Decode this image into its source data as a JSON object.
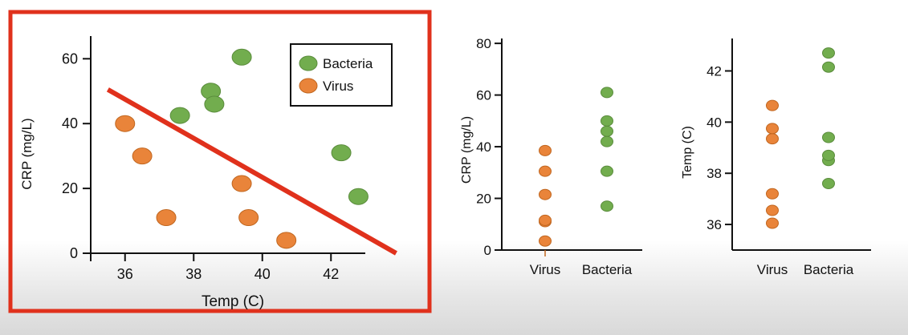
{
  "colors": {
    "bacteria": "#72ad4e",
    "bacteria_stroke": "#5a8c3c",
    "virus": "#e9843a",
    "virus_stroke": "#c0661f",
    "highlight_border": "#e0311c",
    "trend_line": "#e0311c"
  },
  "chart_data": [
    {
      "type": "scatter",
      "title": "",
      "xlabel": "Temp (C)",
      "ylabel": "CRP (mg/L)",
      "xlim": [
        35,
        43
      ],
      "ylim": [
        0,
        67
      ],
      "x_ticks": [
        "36",
        "38",
        "40",
        "42"
      ],
      "y_ticks": [
        "0",
        "20",
        "40",
        "60"
      ],
      "legend": {
        "position": "top-right",
        "entries": [
          "Bacteria",
          "Virus"
        ]
      },
      "series": [
        {
          "name": "Bacteria",
          "points": [
            [
              37.6,
              42.5
            ],
            [
              38.5,
              50
            ],
            [
              38.6,
              46
            ],
            [
              39.4,
              60.5
            ],
            [
              42.3,
              31
            ],
            [
              42.8,
              17.5
            ]
          ]
        },
        {
          "name": "Virus",
          "points": [
            [
              36,
              40
            ],
            [
              36.5,
              30
            ],
            [
              37.2,
              11
            ],
            [
              39.4,
              21.5
            ],
            [
              39.6,
              11
            ],
            [
              40.7,
              4
            ]
          ]
        }
      ],
      "trend_line": [
        [
          35.5,
          50.5
        ],
        [
          43.9,
          0
        ]
      ],
      "highlighted": true
    },
    {
      "type": "scatter",
      "title": "",
      "xlabel": "",
      "ylabel": "CRP (mg/L)",
      "categories": [
        "Virus",
        "Bacteria"
      ],
      "ylim": [
        0,
        85
      ],
      "y_ticks": [
        "0",
        "20",
        "40",
        "60",
        "80"
      ],
      "series": [
        {
          "category": "Virus",
          "values": [
            3.5,
            11,
            11.5,
            21.5,
            30.5,
            38.5
          ]
        },
        {
          "category": "Bacteria",
          "values": [
            17,
            30.5,
            42,
            46,
            50,
            61
          ]
        }
      ]
    },
    {
      "type": "scatter",
      "title": "",
      "xlabel": "",
      "ylabel": "Temp (C)",
      "categories": [
        "Virus",
        "Bacteria"
      ],
      "ylim": [
        35,
        43.3
      ],
      "y_ticks": [
        "36",
        "38",
        "40",
        "42"
      ],
      "series": [
        {
          "category": "Virus",
          "values": [
            36.05,
            36.55,
            37.2,
            39.35,
            39.75,
            40.65
          ]
        },
        {
          "category": "Bacteria",
          "values": [
            37.6,
            38.5,
            38.7,
            39.4,
            42.15,
            42.7
          ]
        }
      ]
    }
  ]
}
